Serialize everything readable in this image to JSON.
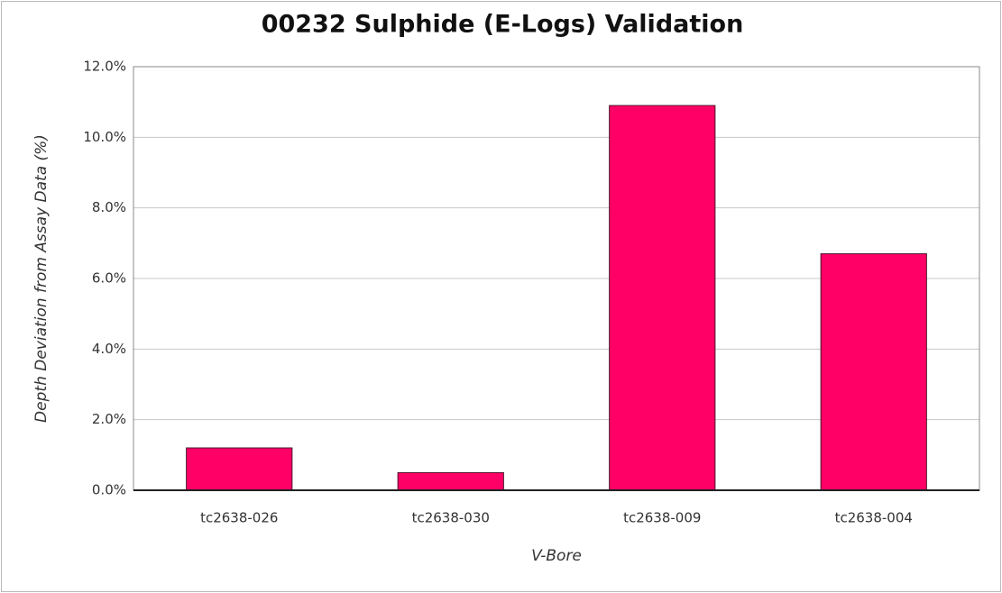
{
  "chart_data": {
    "type": "bar",
    "title": "00232 Sulphide (E-Logs) Validation",
    "x_label": "V-Bore",
    "y_label": "Depth Deviation from Assay Data (%)",
    "categories": [
      "tc2638-026",
      "tc2638-030",
      "tc2638-009",
      "tc2638-004"
    ],
    "values": [
      1.2,
      0.5,
      10.9,
      6.7
    ],
    "color": "#ff0066",
    "ylim": [
      0,
      12
    ],
    "yticks": [
      {
        "value": 0,
        "label": "0.0%"
      },
      {
        "value": 2,
        "label": "2.0%"
      },
      {
        "value": 4,
        "label": "4.0%"
      },
      {
        "value": 6,
        "label": "6.0%"
      },
      {
        "value": 8,
        "label": "8.0%"
      },
      {
        "value": 10,
        "label": "10.0%"
      },
      {
        "value": 12,
        "label": "12.0%"
      }
    ],
    "grid": true
  }
}
